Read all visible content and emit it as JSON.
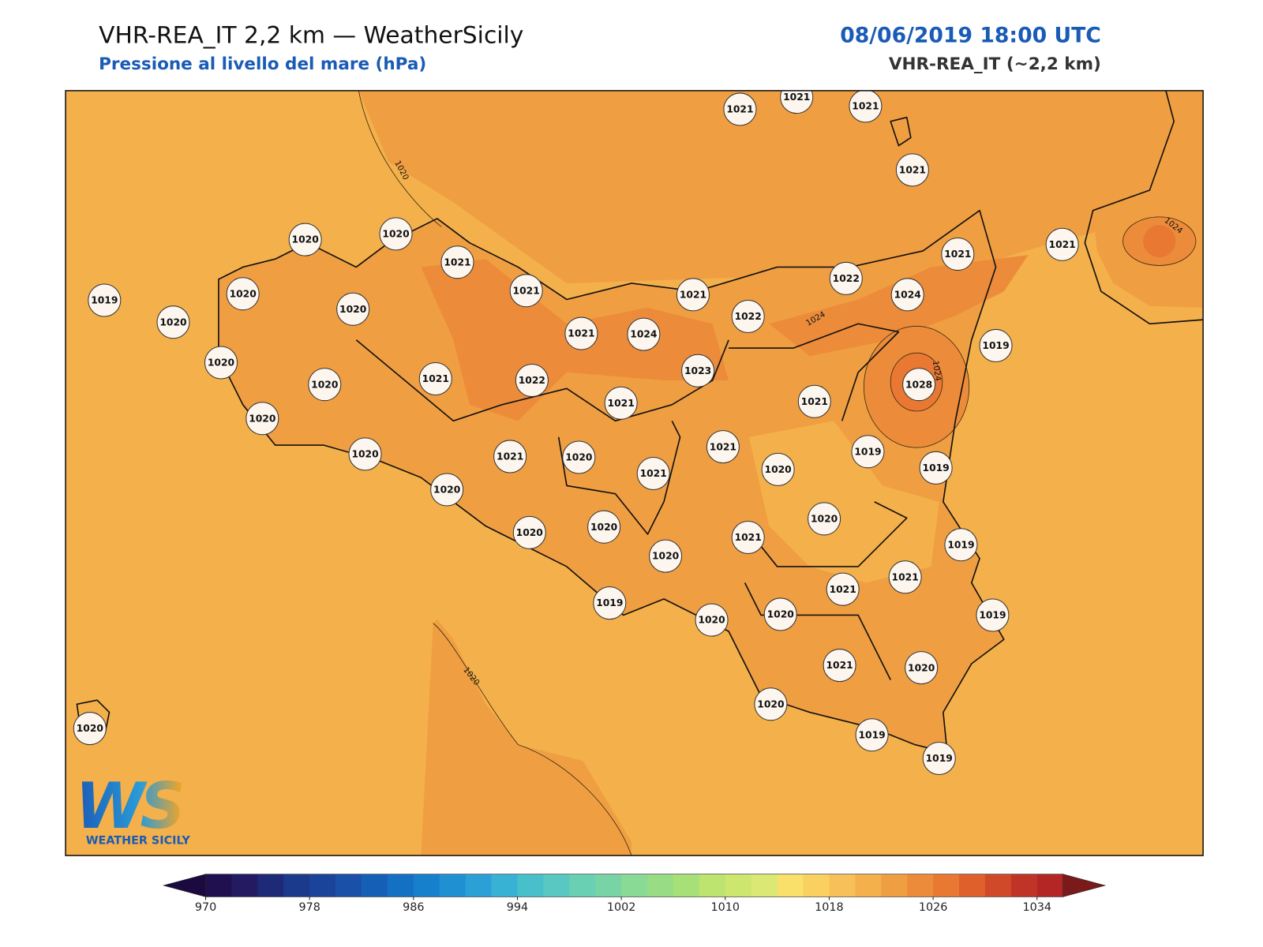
{
  "header": {
    "title": "VHR-REA_IT 2,2 km — WeatherSicily",
    "subtitle": "Pressione al livello del mare (hPa)",
    "datetime": "08/06/2019 18:00 UTC",
    "model": "VHR-REA_IT (~2,2 km)"
  },
  "map": {
    "stations": [
      1021,
      1021,
      1021,
      1021,
      1020,
      1020,
      1021,
      1019,
      1020,
      1020,
      1020,
      1021,
      1021,
      1022,
      1024,
      1021,
      1021,
      1021,
      1024,
      1022,
      1019,
      1020,
      1020,
      1021,
      1022,
      1023,
      1021,
      1021,
      1028,
      1020,
      1020,
      1021,
      1020,
      1021,
      1021,
      1020,
      1019,
      1019,
      1020,
      1020,
      1020,
      1020,
      1021,
      1020,
      1019,
      1021,
      1021,
      1019,
      1020,
      1020,
      1019,
      1021,
      1020,
      1020,
      1019,
      1019,
      1020
    ],
    "contour_labels": [
      1020,
      1020,
      1024,
      1024,
      1024
    ]
  },
  "colorbar": {
    "range": [
      970,
      1036
    ],
    "ticks": [
      970,
      978,
      986,
      994,
      1002,
      1010,
      1018,
      1026,
      1034
    ],
    "colors": [
      "#201050",
      "#231a62",
      "#1e2a78",
      "#1c3a8c",
      "#1a449a",
      "#1a50a8",
      "#1560b6",
      "#1470c2",
      "#1680cc",
      "#1f90d2",
      "#2aa0d6",
      "#38b2d4",
      "#48c0cc",
      "#5ac8c2",
      "#6ad0b4",
      "#78d4a4",
      "#88da94",
      "#98dc86",
      "#a8e078",
      "#bce46e",
      "#cce66e",
      "#dce874",
      "#f8e06a",
      "#fad060",
      "#f8c058",
      "#f4b04a",
      "#f09e42",
      "#ec8c3a",
      "#e87832",
      "#e0602c",
      "#d04a2a",
      "#c03428",
      "#b42626"
    ],
    "under_color": "#1a0a40",
    "over_color": "#7a1a1a"
  },
  "logo": {
    "mark": "WS",
    "text": "WEATHER SICILY"
  }
}
